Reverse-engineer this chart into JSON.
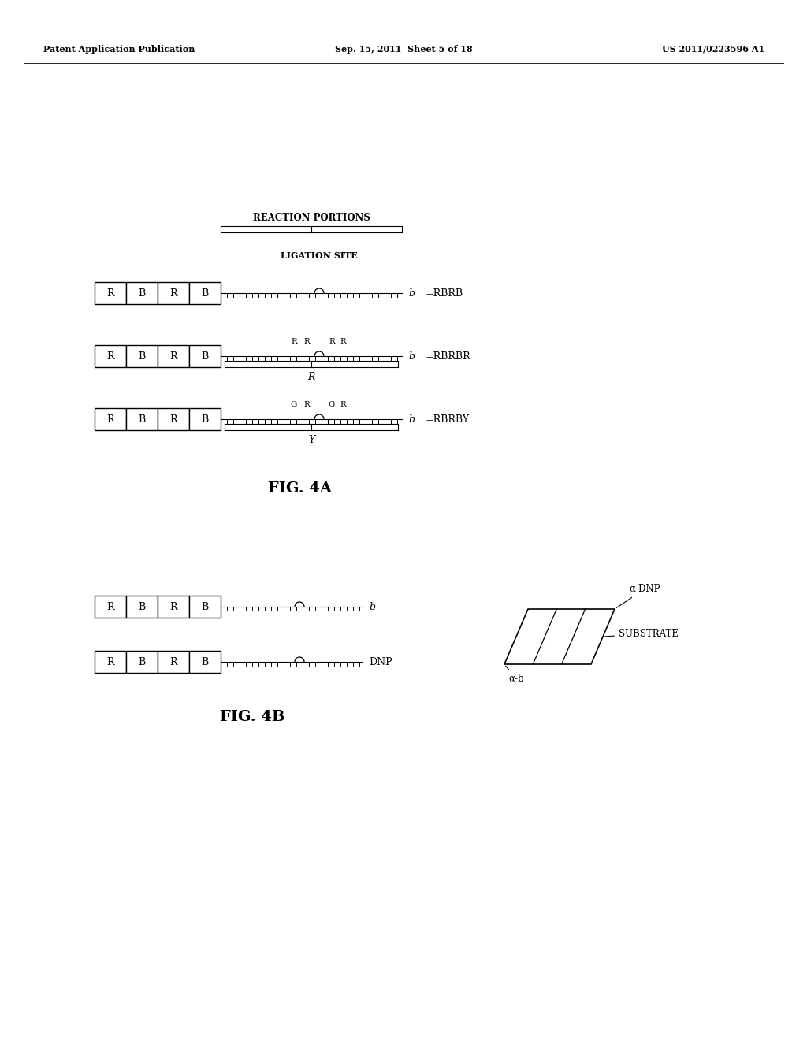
{
  "bg_color": "#ffffff",
  "header_left": "Patent Application Publication",
  "header_mid": "Sep. 15, 2011  Sheet 5 of 18",
  "header_right": "US 2011/0223596 A1",
  "fig4a_label": "FIG. 4A",
  "fig4b_label": "FIG. 4B",
  "rbrb_label": "=RBRB",
  "rbrbr_label": "=RBRBR",
  "rbrby_label": "=RBRBY",
  "reaction_portions_label": "REACTION PORTIONS",
  "ligation_site_label": "LIGATION SITE",
  "b_label": "b",
  "dnp_label": "DNP",
  "alpha_dnp_label": "α-DNP",
  "substrate_label": "SUBSTRATE",
  "alpha_b_label": "α-b",
  "R_label": "R",
  "G_label": "G",
  "Y_label": "Y",
  "box_labels": [
    "R",
    "B",
    "R",
    "B"
  ]
}
